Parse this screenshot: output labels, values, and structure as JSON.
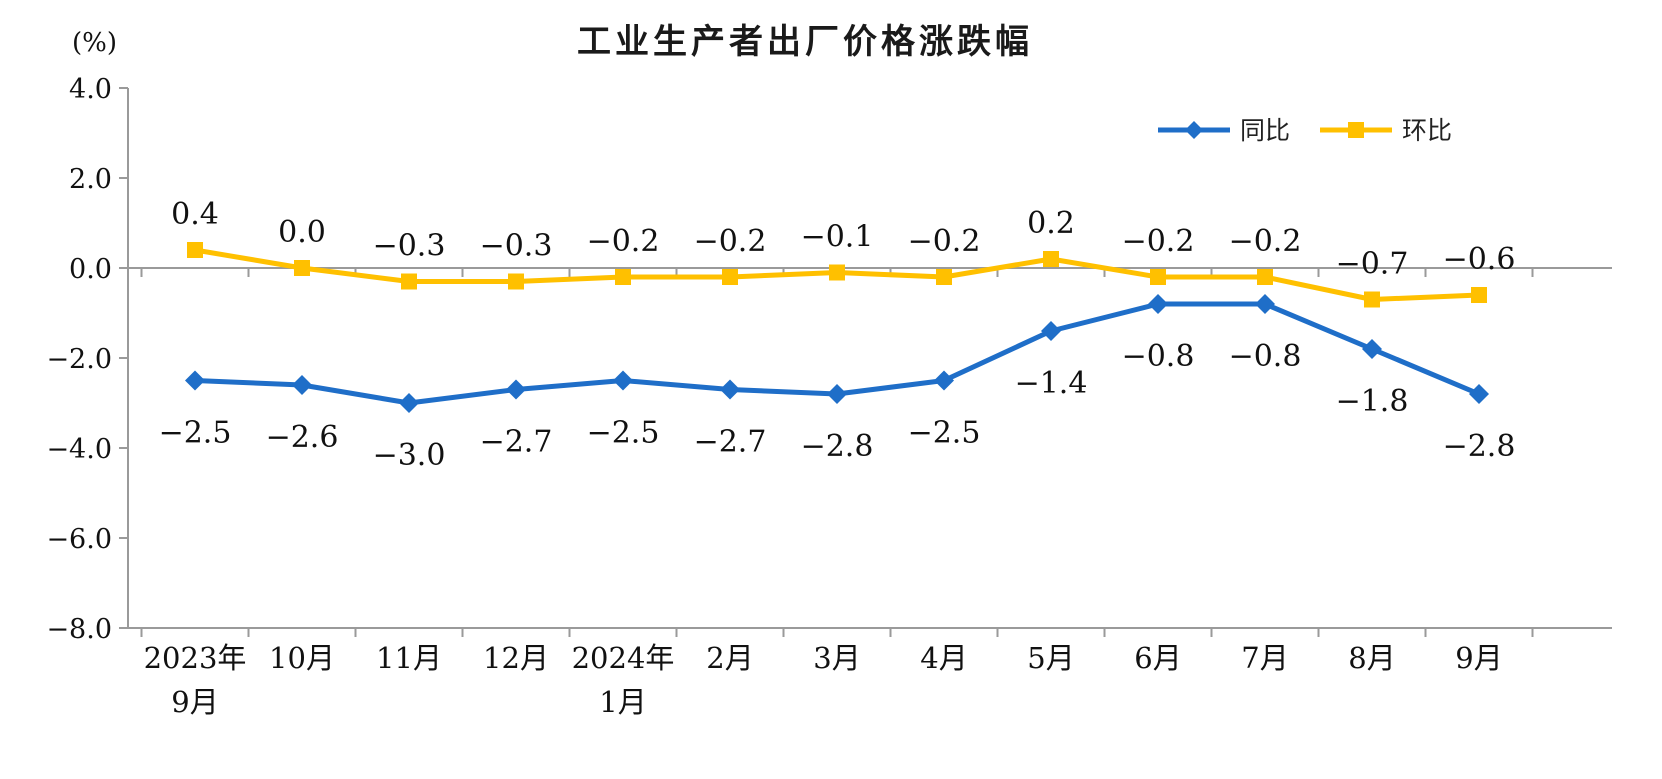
{
  "chart": {
    "title": "工业生产者出厂价格涨跌幅",
    "unit_label": "(%)"
  },
  "chart_data": {
    "type": "line",
    "title": "工业生产者出厂价格涨跌幅",
    "ylabel": "(%)",
    "xlabel": "",
    "ylim": [
      -8.0,
      4.0
    ],
    "ytick_interval": 2.0,
    "yticks": [
      "4.0",
      "2.0",
      "0.0",
      "−2.0",
      "−4.0",
      "−6.0",
      "−8.0"
    ],
    "grid": "zero-line-only",
    "legend_position": "top-right-inside",
    "categories": [
      "2023年\n9月",
      "10月",
      "11月",
      "12月",
      "2024年\n1月",
      "2月",
      "3月",
      "4月",
      "5月",
      "6月",
      "7月",
      "8月",
      "9月"
    ],
    "series": [
      {
        "name": "同比",
        "color": "#1f6ec8",
        "marker": "diamond",
        "label_side": "below",
        "values": [
          -2.5,
          -2.6,
          -3.0,
          -2.7,
          -2.5,
          -2.7,
          -2.8,
          -2.5,
          -1.4,
          -0.8,
          -0.8,
          -1.8,
          -2.8
        ],
        "labels": [
          "−2.5",
          "−2.6",
          "−3.0",
          "−2.7",
          "−2.5",
          "−2.7",
          "−2.8",
          "−2.5",
          "−1.4",
          "−0.8",
          "−0.8",
          "−1.8",
          "−2.8"
        ]
      },
      {
        "name": "环比",
        "color": "#ffc000",
        "marker": "square",
        "label_side": "above",
        "values": [
          0.4,
          0.0,
          -0.3,
          -0.3,
          -0.2,
          -0.2,
          -0.1,
          -0.2,
          0.2,
          -0.2,
          -0.2,
          -0.7,
          -0.6
        ],
        "labels": [
          "0.4",
          "0.0",
          "−0.3",
          "−0.3",
          "−0.2",
          "−0.2",
          "−0.1",
          "−0.2",
          "0.2",
          "−0.2",
          "−0.2",
          "−0.7",
          "−0.6"
        ]
      }
    ]
  }
}
